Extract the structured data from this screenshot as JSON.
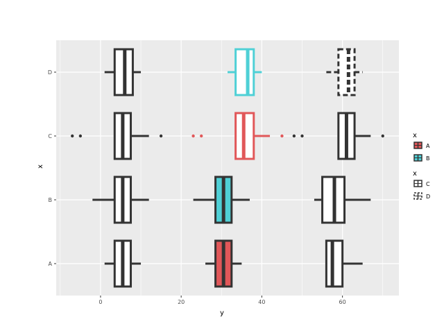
{
  "chart_data": {
    "type": "boxplot",
    "orientation": "horizontal",
    "xlabel": "y",
    "ylabel": "x",
    "xlim": [
      -11,
      74
    ],
    "x_ticks": [
      0,
      20,
      40,
      60
    ],
    "categories": [
      "A",
      "B",
      "C",
      "D"
    ],
    "grid": true,
    "legend_position": "right",
    "colors": {
      "A": "#e15759",
      "B": "#4fd0d6",
      "neutral": "#333333",
      "panel": "#ebebeb"
    },
    "legends": [
      {
        "title": "x",
        "entries": [
          {
            "label": "A",
            "fill": "#e15759",
            "dashed": false
          },
          {
            "label": "B",
            "fill": "#4fd0d6",
            "dashed": false
          }
        ]
      },
      {
        "title": "x",
        "entries": [
          {
            "label": "C",
            "fill": "#ffffff",
            "dashed": false
          },
          {
            "label": "D",
            "fill": "#ffffff",
            "dashed": true
          }
        ]
      }
    ],
    "boxes": [
      {
        "category": "A",
        "group": 1,
        "q1": 3.5,
        "median": 5.5,
        "q3": 7.5,
        "whisker_low": 1,
        "whisker_high": 10,
        "fill": "#ffffff",
        "stroke": "#333333",
        "dashed": false,
        "outliers": []
      },
      {
        "category": "A",
        "group": 2,
        "q1": 28.5,
        "median": 30.5,
        "q3": 32.5,
        "whisker_low": 26,
        "whisker_high": 35,
        "fill": "#e15759",
        "stroke": "#333333",
        "dashed": false,
        "outliers": []
      },
      {
        "category": "A",
        "group": 3,
        "q1": 56,
        "median": 57.5,
        "q3": 60,
        "whisker_low": 56,
        "whisker_high": 65,
        "fill": "#ffffff",
        "stroke": "#333333",
        "dashed": false,
        "outliers": []
      },
      {
        "category": "B",
        "group": 1,
        "q1": 3.5,
        "median": 5.5,
        "q3": 7.5,
        "whisker_low": -2,
        "whisker_high": 12,
        "fill": "#ffffff",
        "stroke": "#333333",
        "dashed": false,
        "outliers": []
      },
      {
        "category": "B",
        "group": 2,
        "q1": 28.5,
        "median": 30.5,
        "q3": 32.5,
        "whisker_low": 23,
        "whisker_high": 37,
        "fill": "#4fd0d6",
        "stroke": "#333333",
        "dashed": false,
        "outliers": []
      },
      {
        "category": "B",
        "group": 3,
        "q1": 55,
        "median": 58,
        "q3": 60.5,
        "whisker_low": 53,
        "whisker_high": 67,
        "fill": "#ffffff",
        "stroke": "#333333",
        "dashed": false,
        "outliers": []
      },
      {
        "category": "C",
        "group": 1,
        "q1": 3.5,
        "median": 5.5,
        "q3": 7.5,
        "whisker_low": 3.5,
        "whisker_high": 12,
        "fill": "#ffffff",
        "stroke": "#333333",
        "dashed": false,
        "outliers": [
          -7,
          -5,
          15
        ]
      },
      {
        "category": "C",
        "group": 2,
        "q1": 33.5,
        "median": 35.5,
        "q3": 38,
        "whisker_low": 33.5,
        "whisker_high": 42,
        "fill": "#ffffff",
        "stroke": "#e15759",
        "dashed": false,
        "outliers": [
          23,
          25,
          45
        ]
      },
      {
        "category": "C",
        "group": 3,
        "q1": 59,
        "median": 61,
        "q3": 63,
        "whisker_low": 59,
        "whisker_high": 67,
        "fill": "#ffffff",
        "stroke": "#333333",
        "dashed": false,
        "outliers": [
          48,
          50,
          70
        ]
      },
      {
        "category": "D",
        "group": 1,
        "q1": 3.5,
        "median": 6,
        "q3": 8,
        "whisker_low": 1,
        "whisker_high": 10,
        "fill": "#ffffff",
        "stroke": "#333333",
        "dashed": false,
        "outliers": []
      },
      {
        "category": "D",
        "group": 2,
        "q1": 33.5,
        "median": 36.5,
        "q3": 38,
        "whisker_low": 31.5,
        "whisker_high": 40,
        "fill": "#ffffff",
        "stroke": "#4fd0d6",
        "dashed": false,
        "outliers": []
      },
      {
        "category": "D",
        "group": 3,
        "q1": 59,
        "median": 61.5,
        "q3": 63,
        "whisker_low": 56,
        "whisker_high": 65,
        "fill": "#ffffff",
        "stroke": "#333333",
        "dashed": true,
        "outliers": []
      }
    ]
  }
}
